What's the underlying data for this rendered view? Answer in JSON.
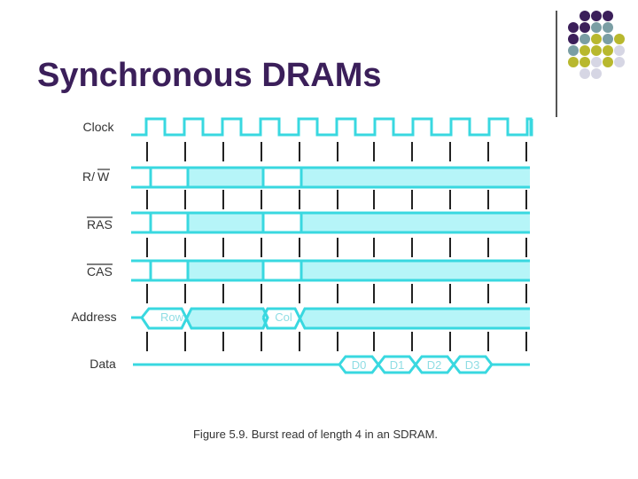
{
  "slide": {
    "title": "Synchronous DRAMs",
    "caption": "Figure 5.9. Burst read of length 4 in an SDRAM.",
    "colors": {
      "title": "#3b1f5a",
      "waveform": "#39d8e0",
      "fill": "#b6f5f8",
      "dot_purple": "#3b1f5a",
      "dot_teal": "#7a9ea4",
      "dot_olive": "#b8b82e",
      "dot_gray": "#d6d6e4"
    }
  },
  "signals": {
    "clock": "Clock",
    "rw_prefix": "R/",
    "rw_bar": "W",
    "ras": "RAS",
    "cas": "CAS",
    "address": "Address",
    "data": "Data"
  },
  "address_values": [
    "Row",
    "Col"
  ],
  "data_values": [
    "D0",
    "D1",
    "D2",
    "D3"
  ]
}
